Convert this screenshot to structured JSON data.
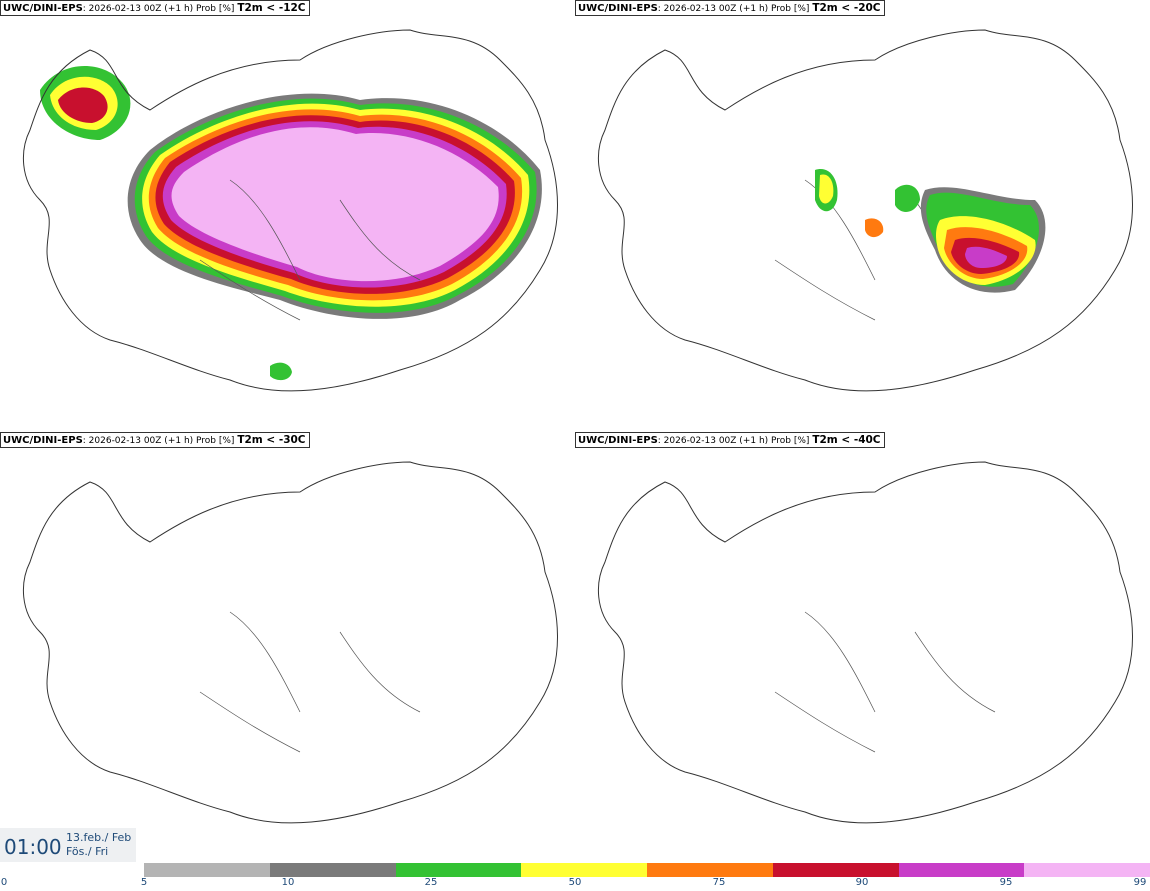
{
  "panels": [
    {
      "model": "UWC/DINI-EPS",
      "run": ": 2026-02-13 00Z (+1 h) Prob [%] ",
      "threshold": "T2m < -12C"
    },
    {
      "model": "UWC/DINI-EPS",
      "run": ": 2026-02-13 00Z (+1 h) Prob [%] ",
      "threshold": "T2m < -20C"
    },
    {
      "model": "UWC/DINI-EPS",
      "run": ": 2026-02-13 00Z (+1 h) Prob [%] ",
      "threshold": "T2m < -30C"
    },
    {
      "model": "UWC/DINI-EPS",
      "run": ": 2026-02-13 00Z (+1 h) Prob [%] ",
      "threshold": "T2m < -40C"
    }
  ],
  "time": {
    "clock": "01:00",
    "date_line1": "13.feb./ Feb",
    "date_line2": "Fös./ Fri"
  },
  "legend": {
    "ticks": [
      "0",
      "5",
      "10",
      "25",
      "50",
      "75",
      "90",
      "95",
      "99"
    ],
    "colors": [
      "#b4b4b4",
      "#7a7a7a",
      "#33c233",
      "#ffff33",
      "#ff7a10",
      "#c8102e",
      "#c83cc8",
      "#f4b4f4"
    ]
  }
}
